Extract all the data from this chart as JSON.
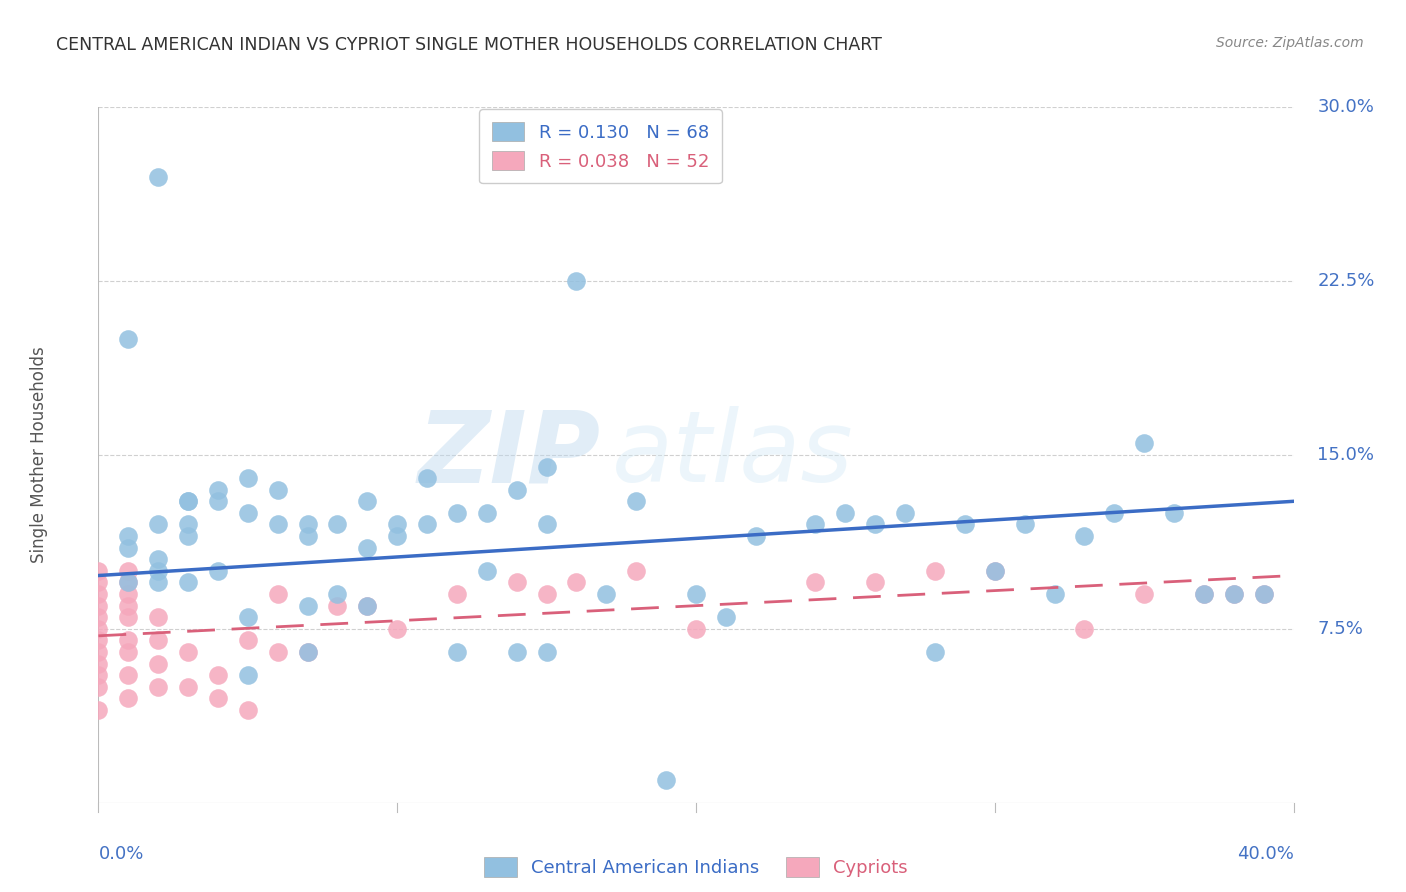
{
  "title": "CENTRAL AMERICAN INDIAN VS CYPRIOT SINGLE MOTHER HOUSEHOLDS CORRELATION CHART",
  "source": "Source: ZipAtlas.com",
  "ylabel": "Single Mother Households",
  "watermark_zip": "ZIP",
  "watermark_atlas": "atlas",
  "xlim": [
    0.0,
    0.4
  ],
  "ylim": [
    0.0,
    0.3
  ],
  "yticks": [
    0.0,
    0.075,
    0.15,
    0.225,
    0.3
  ],
  "ytick_labels": [
    "",
    "7.5%",
    "15.0%",
    "22.5%",
    "30.0%"
  ],
  "xticks": [
    0.0,
    0.1,
    0.2,
    0.3,
    0.4
  ],
  "blue_R": 0.13,
  "blue_N": 68,
  "pink_R": 0.038,
  "pink_N": 52,
  "blue_color": "#92C0E0",
  "pink_color": "#F5A8BC",
  "blue_line_color": "#3B6CC5",
  "pink_line_color": "#D9607A",
  "grid_color": "#D0D0D0",
  "title_color": "#333333",
  "axis_label_color": "#555555",
  "right_tick_color": "#4472C4",
  "bottom_tick_color": "#4472C4",
  "blue_scatter_x": [
    0.01,
    0.01,
    0.01,
    0.02,
    0.02,
    0.02,
    0.02,
    0.02,
    0.03,
    0.03,
    0.03,
    0.03,
    0.04,
    0.04,
    0.04,
    0.05,
    0.05,
    0.05,
    0.06,
    0.06,
    0.07,
    0.07,
    0.07,
    0.08,
    0.08,
    0.09,
    0.09,
    0.1,
    0.1,
    0.11,
    0.11,
    0.12,
    0.12,
    0.13,
    0.13,
    0.14,
    0.14,
    0.15,
    0.15,
    0.16,
    0.17,
    0.18,
    0.19,
    0.2,
    0.21,
    0.22,
    0.24,
    0.25,
    0.26,
    0.27,
    0.28,
    0.29,
    0.3,
    0.31,
    0.32,
    0.33,
    0.34,
    0.35,
    0.36,
    0.37,
    0.38,
    0.39,
    0.01,
    0.03,
    0.05,
    0.07,
    0.09,
    0.15
  ],
  "blue_scatter_y": [
    0.11,
    0.095,
    0.115,
    0.105,
    0.1,
    0.12,
    0.095,
    0.27,
    0.115,
    0.13,
    0.12,
    0.095,
    0.135,
    0.13,
    0.1,
    0.125,
    0.14,
    0.08,
    0.12,
    0.135,
    0.12,
    0.115,
    0.065,
    0.12,
    0.09,
    0.085,
    0.13,
    0.12,
    0.115,
    0.14,
    0.12,
    0.125,
    0.065,
    0.125,
    0.1,
    0.135,
    0.065,
    0.12,
    0.065,
    0.225,
    0.09,
    0.13,
    0.01,
    0.09,
    0.08,
    0.115,
    0.12,
    0.125,
    0.12,
    0.125,
    0.065,
    0.12,
    0.1,
    0.12,
    0.09,
    0.115,
    0.125,
    0.155,
    0.125,
    0.09,
    0.09,
    0.09,
    0.2,
    0.13,
    0.055,
    0.085,
    0.11,
    0.145
  ],
  "pink_scatter_x": [
    0.0,
    0.0,
    0.0,
    0.0,
    0.0,
    0.0,
    0.0,
    0.0,
    0.0,
    0.0,
    0.0,
    0.0,
    0.01,
    0.01,
    0.01,
    0.01,
    0.01,
    0.01,
    0.01,
    0.01,
    0.01,
    0.02,
    0.02,
    0.02,
    0.02,
    0.03,
    0.03,
    0.04,
    0.04,
    0.05,
    0.05,
    0.06,
    0.06,
    0.07,
    0.08,
    0.09,
    0.1,
    0.14,
    0.15,
    0.18,
    0.2,
    0.24,
    0.26,
    0.28,
    0.3,
    0.33,
    0.35,
    0.37,
    0.38,
    0.39,
    0.12,
    0.16
  ],
  "pink_scatter_y": [
    0.1,
    0.095,
    0.09,
    0.085,
    0.08,
    0.075,
    0.07,
    0.065,
    0.06,
    0.055,
    0.05,
    0.04,
    0.1,
    0.095,
    0.09,
    0.085,
    0.08,
    0.07,
    0.065,
    0.055,
    0.045,
    0.08,
    0.07,
    0.06,
    0.05,
    0.065,
    0.05,
    0.055,
    0.045,
    0.07,
    0.04,
    0.09,
    0.065,
    0.065,
    0.085,
    0.085,
    0.075,
    0.095,
    0.09,
    0.1,
    0.075,
    0.095,
    0.095,
    0.1,
    0.1,
    0.075,
    0.09,
    0.09,
    0.09,
    0.09,
    0.09,
    0.095
  ],
  "blue_trend_x0": 0.0,
  "blue_trend_y0": 0.098,
  "blue_trend_x1": 0.4,
  "blue_trend_y1": 0.13,
  "pink_trend_x0": 0.0,
  "pink_trend_y0": 0.072,
  "pink_trend_x1": 0.4,
  "pink_trend_y1": 0.098
}
